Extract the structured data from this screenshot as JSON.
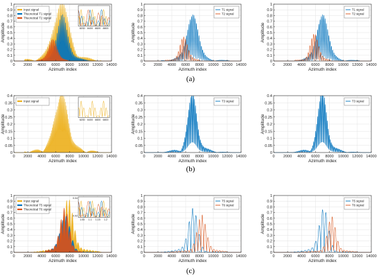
{
  "captions": [
    "(a)",
    "(b)",
    "(c)"
  ],
  "chart_data": [
    {
      "id": "a1",
      "type": "area",
      "xlabel": "Azimuth index",
      "ylabel": "Amplitude",
      "xlim": [
        0,
        14000
      ],
      "ylim": [
        0,
        1
      ],
      "xticks": [
        0,
        2000,
        4000,
        6000,
        8000,
        10000,
        12000,
        14000
      ],
      "yticks": [
        0,
        0.1,
        0.2,
        0.3,
        0.4,
        0.5,
        0.6,
        0.7,
        0.8,
        0.9,
        1
      ],
      "grid": true,
      "legend_position": "top-left",
      "legend": [
        "Input signal",
        "Theoretical T1 signal",
        "Theoretical T2 signal"
      ],
      "series": [
        {
          "name": "Input signal",
          "color": "#EDB120",
          "center": 6800,
          "width": 1500,
          "peak": 0.95,
          "period": 160,
          "style": "fill",
          "x_range": [
            1500,
            12500
          ]
        },
        {
          "name": "Theoretical T1 signal",
          "color": "#0072BD",
          "center": 7000,
          "width": 1000,
          "peak": 0.78,
          "period": 200,
          "style": "fill",
          "x_range": [
            4500,
            12000
          ]
        },
        {
          "name": "Theoretical T2 signal",
          "color": "#D95319",
          "center": 5600,
          "width": 800,
          "peak": 0.38,
          "period": 150,
          "style": "fill",
          "x_range": [
            3000,
            7800
          ]
        }
      ],
      "inset": {
        "xticks": [
          "8200",
          "8400",
          "8600",
          "8800"
        ]
      }
    },
    {
      "id": "a2",
      "type": "line",
      "xlabel": "Azimuth index",
      "ylabel": "Amplitude",
      "xlim": [
        0,
        14000
      ],
      "ylim": [
        0,
        1
      ],
      "xticks": [
        0,
        2000,
        4000,
        6000,
        8000,
        10000,
        12000,
        14000
      ],
      "yticks": [
        0,
        0.1,
        0.2,
        0.3,
        0.4,
        0.5,
        0.6,
        0.7,
        0.8,
        0.9,
        1
      ],
      "grid": true,
      "legend_position": "top-right",
      "legend": [
        "T1 signal",
        "T2 signal"
      ],
      "series": [
        {
          "name": "T1 signal",
          "color": "#0072BD",
          "center": 7000,
          "width": 1050,
          "peak": 0.8,
          "period": 180,
          "style": "line",
          "x_range": [
            2500,
            12300
          ]
        },
        {
          "name": "T2 signal",
          "color": "#D95319",
          "center": 5700,
          "width": 800,
          "peak": 0.4,
          "period": 260,
          "style": "line",
          "x_range": [
            3000,
            8000
          ]
        }
      ]
    },
    {
      "id": "a3",
      "type": "line",
      "xlabel": "Azimuth index",
      "ylabel": "Amplitude",
      "xlim": [
        0,
        14000
      ],
      "ylim": [
        0,
        1
      ],
      "xticks": [
        0,
        2000,
        4000,
        6000,
        8000,
        10000,
        12000,
        14000
      ],
      "yticks": [
        0,
        0.1,
        0.2,
        0.3,
        0.4,
        0.5,
        0.6,
        0.7,
        0.8,
        0.9,
        1
      ],
      "grid": true,
      "legend_position": "top-right",
      "legend": [
        "T1 signal",
        "T2 signal"
      ],
      "series": [
        {
          "name": "T1 signal",
          "color": "#0072BD",
          "center": 7000,
          "width": 1050,
          "peak": 0.8,
          "period": 180,
          "style": "line",
          "x_range": [
            3000,
            12300
          ]
        },
        {
          "name": "T2 signal",
          "color": "#D95319",
          "center": 5800,
          "width": 800,
          "peak": 0.45,
          "period": 260,
          "style": "line",
          "x_range": [
            3000,
            8200
          ]
        }
      ]
    },
    {
      "id": "b1",
      "type": "area",
      "xlabel": "Azimuth index",
      "ylabel": "Amplitude",
      "xlim": [
        0,
        14000
      ],
      "ylim": [
        0,
        0.4
      ],
      "xticks": [
        0,
        2000,
        4000,
        6000,
        8000,
        10000,
        12000,
        14000
      ],
      "yticks": [
        0,
        0.05,
        0.1,
        0.15,
        0.2,
        0.25,
        0.3,
        0.35,
        0.4
      ],
      "grid": true,
      "legend_position": "top-left",
      "legend": [
        "Input signal"
      ],
      "series": [
        {
          "name": "Input signal",
          "color": "#EDB120",
          "center": 6800,
          "width": 1300,
          "peak": 0.38,
          "period": 110,
          "style": "fill",
          "x_range": [
            1500,
            12500
          ]
        }
      ],
      "inset": {
        "xticks": [
          "6200",
          "6400",
          "6600",
          "6800"
        ]
      }
    },
    {
      "id": "b2",
      "type": "line",
      "xlabel": "Azimuth index",
      "ylabel": "Amplitude",
      "xlim": [
        0,
        14000
      ],
      "ylim": [
        0,
        0.4
      ],
      "xticks": [
        0,
        2000,
        4000,
        6000,
        8000,
        10000,
        12000,
        14000
      ],
      "yticks": [
        0,
        0.05,
        0.1,
        0.15,
        0.2,
        0.25,
        0.3,
        0.35,
        0.4
      ],
      "grid": true,
      "legend_position": "top-right",
      "legend": [
        "T3 signal"
      ],
      "series": [
        {
          "name": "T3 signal",
          "color": "#0072BD",
          "center": 7000,
          "width": 900,
          "peak": 0.38,
          "period": 140,
          "style": "line",
          "x_range": [
            2000,
            12500
          ]
        }
      ]
    },
    {
      "id": "b3",
      "type": "line",
      "xlabel": "Azimuth index",
      "ylabel": "Amplitude",
      "xlim": [
        0,
        14000
      ],
      "ylim": [
        0,
        0.4
      ],
      "xticks": [
        0,
        2000,
        4000,
        6000,
        8000,
        10000,
        12000,
        14000
      ],
      "yticks": [
        0,
        0.05,
        0.1,
        0.15,
        0.2,
        0.25,
        0.3,
        0.35,
        0.4
      ],
      "grid": true,
      "legend_position": "top-right",
      "legend": [
        "T3 signal"
      ],
      "series": [
        {
          "name": "T3 signal",
          "color": "#0072BD",
          "center": 7000,
          "width": 900,
          "peak": 0.39,
          "period": 140,
          "style": "line",
          "x_range": [
            2500,
            12500
          ]
        }
      ]
    },
    {
      "id": "c1",
      "type": "area",
      "xlabel": "Azimuth index",
      "ylabel": "Amplitude",
      "xlim": [
        0,
        14000
      ],
      "ylim": [
        0,
        1
      ],
      "xticks": [
        0,
        2000,
        4000,
        6000,
        8000,
        10000,
        12000,
        14000
      ],
      "yticks": [
        0,
        0.1,
        0.2,
        0.3,
        0.4,
        0.5,
        0.6,
        0.7,
        0.8,
        0.9,
        1
      ],
      "grid": true,
      "legend_position": "top-left",
      "legend": [
        "Input signal",
        "Theoretical T5 signal",
        "Theoretical T6 signal"
      ],
      "series": [
        {
          "name": "Input signal",
          "color": "#EDB120",
          "center": 7800,
          "width": 1000,
          "peak": 0.95,
          "period": 420,
          "style": "fill",
          "x_range": [
            1500,
            12500
          ]
        },
        {
          "name": "Theoretical T5 signal",
          "color": "#0072BD",
          "center": 7400,
          "width": 1000,
          "peak": 0.6,
          "period": 500,
          "style": "fill",
          "x_range": [
            4500,
            11500
          ]
        },
        {
          "name": "Theoretical T6 signal",
          "color": "#D95319",
          "center": 7300,
          "width": 900,
          "peak": 0.75,
          "period": 450,
          "style": "fill",
          "x_range": [
            4500,
            9800
          ]
        }
      ],
      "inset": {
        "yticks": [
          "0.04",
          "0.02"
        ],
        "xticks": [
          "1.05",
          "1.1",
          "1.15",
          "1.2"
        ]
      }
    },
    {
      "id": "c2",
      "type": "line",
      "xlabel": "Azimuth index",
      "ylabel": "Amplitude",
      "xlim": [
        0,
        14000
      ],
      "ylim": [
        0,
        1
      ],
      "xticks": [
        0,
        2000,
        4000,
        6000,
        8000,
        10000,
        12000,
        14000
      ],
      "yticks": [
        0,
        0.1,
        0.2,
        0.3,
        0.4,
        0.5,
        0.6,
        0.7,
        0.8,
        0.9,
        1
      ],
      "grid": true,
      "legend_position": "top-right",
      "legend": [
        "T5 signal",
        "T6 signal"
      ],
      "series": [
        {
          "name": "T5 signal",
          "color": "#0072BD",
          "center": 7100,
          "width": 900,
          "peak": 0.72,
          "period": 500,
          "style": "line",
          "x_range": [
            1800,
            12000
          ]
        },
        {
          "name": "T6 signal",
          "color": "#D95319",
          "center": 8300,
          "width": 900,
          "peak": 0.65,
          "period": 420,
          "style": "line",
          "x_range": [
            3800,
            12000
          ]
        }
      ]
    },
    {
      "id": "c3",
      "type": "line",
      "xlabel": "Azimuth index",
      "ylabel": "Amplitude",
      "xlim": [
        0,
        14000
      ],
      "ylim": [
        0,
        1
      ],
      "xticks": [
        0,
        2000,
        4000,
        6000,
        8000,
        10000,
        12000,
        14000
      ],
      "yticks": [
        0,
        0.1,
        0.2,
        0.3,
        0.4,
        0.5,
        0.6,
        0.7,
        0.8,
        0.9,
        1
      ],
      "grid": true,
      "legend_position": "top-right",
      "legend": [
        "T5 signal",
        "T6 signal"
      ],
      "series": [
        {
          "name": "T5 signal",
          "color": "#0072BD",
          "center": 7200,
          "width": 900,
          "peak": 0.72,
          "period": 500,
          "style": "line",
          "x_range": [
            1800,
            12000
          ]
        },
        {
          "name": "T6 signal",
          "color": "#D95319",
          "center": 8300,
          "width": 800,
          "peak": 0.62,
          "period": 420,
          "style": "line",
          "x_range": [
            4000,
            12000
          ]
        }
      ]
    }
  ]
}
